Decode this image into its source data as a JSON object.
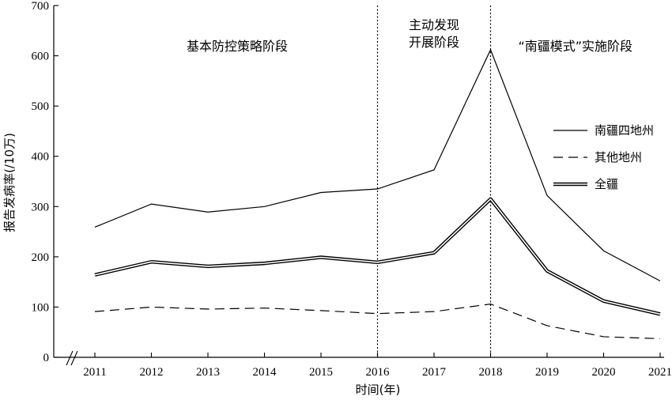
{
  "chart_data": {
    "type": "line",
    "title": "",
    "xlabel": "时间(年)",
    "ylabel": "报告发病率(/10万)",
    "x": [
      "2011",
      "2012",
      "2013",
      "2014",
      "2015",
      "2016",
      "2017",
      "2018",
      "2019",
      "2020",
      "2021"
    ],
    "yticks": [
      "0",
      "100",
      "200",
      "300",
      "400",
      "500",
      "600",
      "700"
    ],
    "ylim": [
      0,
      700
    ],
    "grid": false,
    "legend_position": "right",
    "series": [
      {
        "name": "南疆四地州",
        "style": "solid",
        "values": [
          259,
          305,
          289,
          300,
          328,
          335,
          373,
          612,
          322,
          212,
          152
        ]
      },
      {
        "name": "其他地州",
        "style": "dashed",
        "values": [
          91,
          100,
          96,
          98,
          93,
          87,
          91,
          106,
          63,
          41,
          37
        ]
      },
      {
        "name": "全疆",
        "style": "double",
        "values": [
          164,
          190,
          181,
          187,
          199,
          189,
          208,
          315,
          172,
          112,
          86
        ]
      }
    ],
    "phase_dividers": [
      "2016",
      "2018"
    ],
    "phase_labels": [
      {
        "lines": [
          "基本防控策略阶段"
        ],
        "from": "2011",
        "to": "2016"
      },
      {
        "lines": [
          "主动发现",
          "开展阶段"
        ],
        "from": "2016",
        "to": "2018"
      },
      {
        "lines": [
          "“南疆模式”实施阶段"
        ],
        "from": "2018",
        "to": "2021"
      }
    ],
    "colors": {
      "line": "#000000",
      "background": "#ffffff"
    }
  }
}
